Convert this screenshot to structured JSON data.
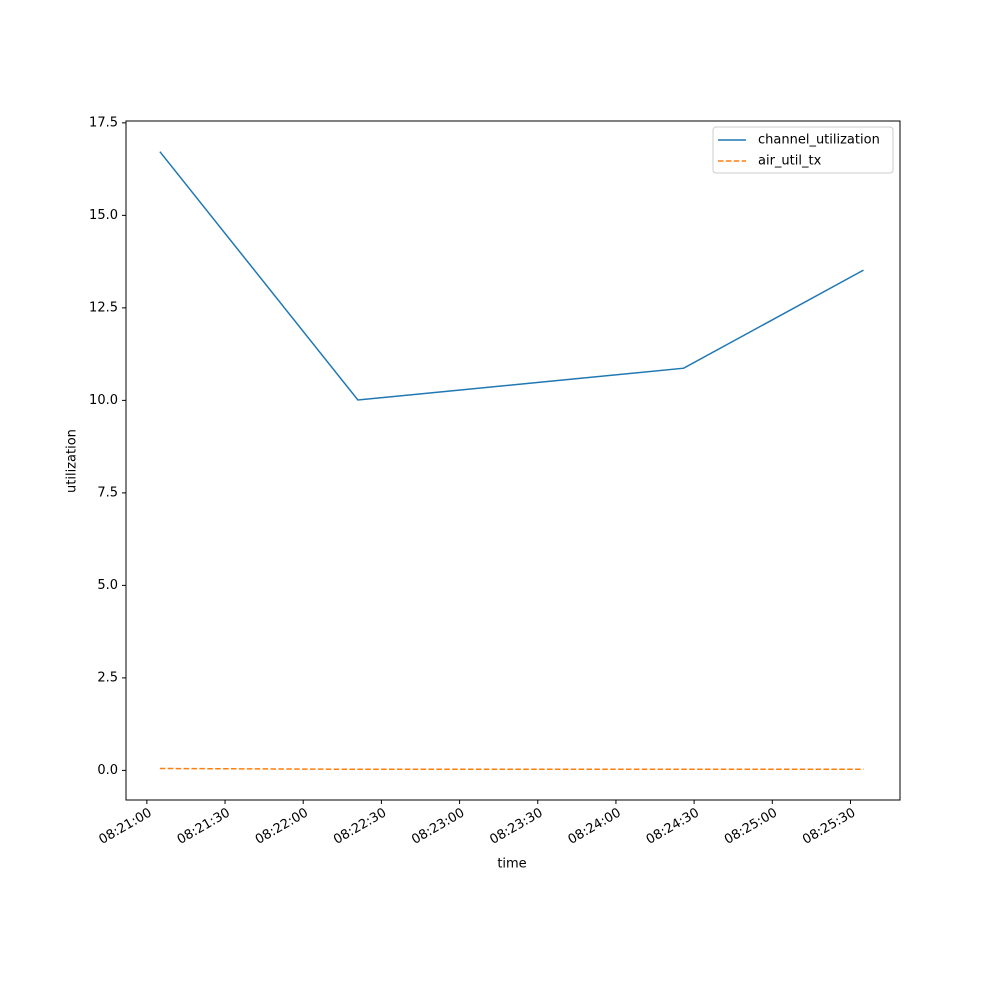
{
  "chart_data": {
    "type": "line",
    "x_label": "time",
    "y_label": "utilization",
    "x": [
      "08:21:05",
      "08:22:21",
      "08:24:26",
      "08:25:35"
    ],
    "series": [
      {
        "name": "channel_utilization",
        "color": "#1f77b4",
        "dash": "solid",
        "values": [
          16.72,
          10.01,
          10.87,
          13.52
        ]
      },
      {
        "name": "air_util_tx",
        "color": "#ff7f0e",
        "dash": "dashed",
        "values": [
          0.05,
          0.03,
          0.03,
          0.03
        ]
      }
    ],
    "xlim": [
      "08:20:52",
      "08:25:49"
    ],
    "xticks": [
      "08:21:00",
      "08:21:30",
      "08:22:00",
      "08:22:30",
      "08:23:00",
      "08:23:30",
      "08:24:00",
      "08:24:30",
      "08:25:00",
      "08:25:30"
    ],
    "ylim": [
      -0.8,
      17.55
    ],
    "yticks": [
      {
        "value": 0,
        "label": "0.0"
      },
      2.5,
      {
        "value": 5,
        "label": "5.0"
      },
      7.5,
      {
        "value": 10,
        "label": "10.0"
      },
      12.5,
      {
        "value": 15,
        "label": "15.0"
      },
      17.5
    ],
    "grid": false,
    "legend": "upper right"
  }
}
